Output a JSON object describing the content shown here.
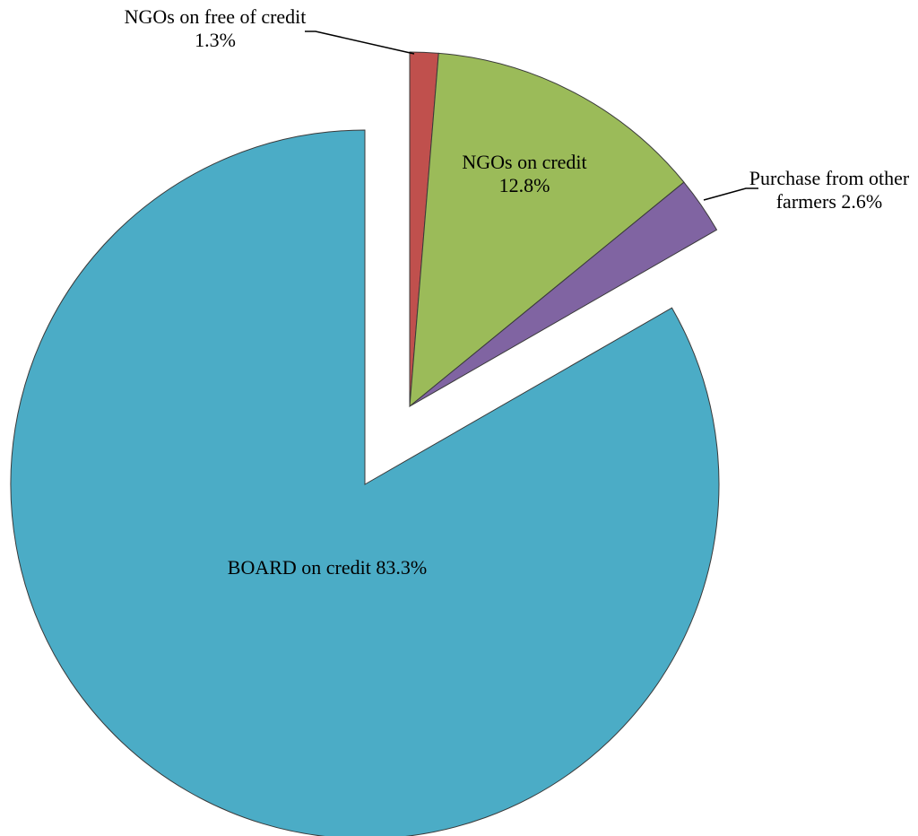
{
  "chart_data": {
    "type": "pie",
    "categories": [
      "NGOs on free of credit",
      "NGOs on credit",
      "Purchase from other farmers",
      "BOARD on credit"
    ],
    "values": [
      1.3,
      12.8,
      2.6,
      83.3
    ],
    "value_labels": [
      "1.3%",
      "12.8%",
      "2.6%",
      "83.3%"
    ],
    "colors": [
      "#c0504d",
      "#9bbb59",
      "#8064a2",
      "#4bacc6"
    ]
  }
}
